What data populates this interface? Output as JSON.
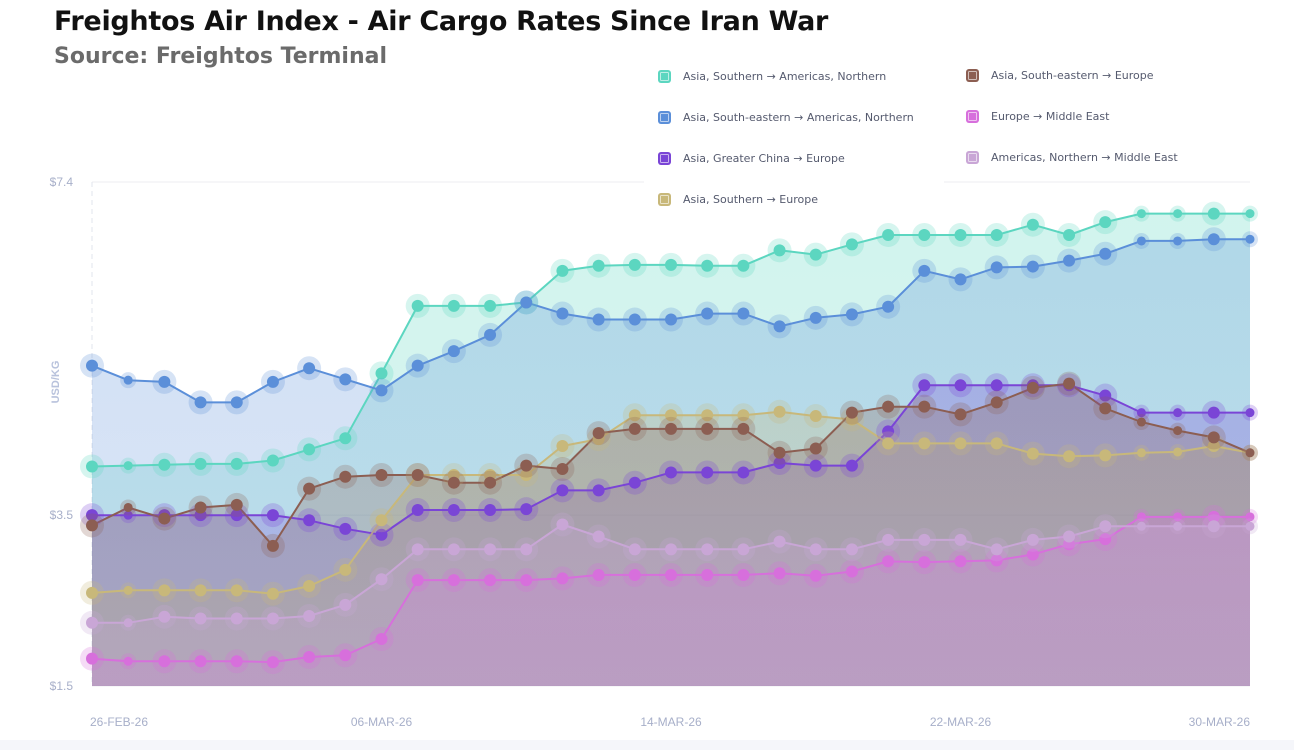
{
  "header": {
    "title": "Freightos Air Index - Air Cargo Rates Since Iran War",
    "subtitle": "Source: Freightos Terminal"
  },
  "chart_data": {
    "type": "area",
    "title": "Freightos Air Index - Air Cargo Rates Since Iran War",
    "subtitle": "Source: Freightos Terminal",
    "xlabel": "",
    "ylabel": "USD/KG",
    "ylim": [
      1.5,
      7.4
    ],
    "y_ticks": [
      1.5,
      3.5,
      7.4
    ],
    "y_tick_labels": [
      "$1.5",
      "$3.5",
      "$7.4"
    ],
    "x": [
      "26-FEB-26",
      "27-FEB-26",
      "28-FEB-26",
      "01-MAR-26",
      "02-MAR-26",
      "03-MAR-26",
      "04-MAR-26",
      "05-MAR-26",
      "06-MAR-26",
      "07-MAR-26",
      "08-MAR-26",
      "09-MAR-26",
      "10-MAR-26",
      "11-MAR-26",
      "12-MAR-26",
      "13-MAR-26",
      "14-MAR-26",
      "15-MAR-26",
      "16-MAR-26",
      "17-MAR-26",
      "18-MAR-26",
      "19-MAR-26",
      "20-MAR-26",
      "21-MAR-26",
      "22-MAR-26",
      "23-MAR-26",
      "24-MAR-26",
      "25-MAR-26",
      "26-MAR-26",
      "27-MAR-26",
      "28-MAR-26",
      "29-MAR-26",
      "30-MAR-26"
    ],
    "x_tick_labels": [
      "26-FEB-26",
      "06-MAR-26",
      "14-MAR-26",
      "22-MAR-26",
      "30-MAR-26"
    ],
    "x_tick_indices": [
      0,
      8,
      16,
      24,
      32
    ],
    "grid": true,
    "legend_position": "top-right",
    "series": [
      {
        "name": "Asia, Southern → Americas, Northern",
        "color": "#5cd6c0",
        "values": [
          4.07,
          4.08,
          4.09,
          4.1,
          4.1,
          4.14,
          4.27,
          4.4,
          5.16,
          5.95,
          5.95,
          5.95,
          5.99,
          6.36,
          6.42,
          6.43,
          6.43,
          6.42,
          6.42,
          6.6,
          6.55,
          6.67,
          6.78,
          6.78,
          6.78,
          6.78,
          6.9,
          6.78,
          6.93,
          7.03,
          7.03,
          7.03,
          7.03
        ]
      },
      {
        "name": "Asia, South-eastern → Americas, Northern",
        "color": "#5b8fd9",
        "values": [
          5.25,
          5.08,
          5.06,
          4.82,
          4.82,
          5.06,
          5.22,
          5.09,
          4.96,
          5.25,
          5.42,
          5.61,
          5.99,
          5.86,
          5.79,
          5.79,
          5.79,
          5.86,
          5.86,
          5.71,
          5.81,
          5.85,
          5.94,
          6.36,
          6.26,
          6.4,
          6.41,
          6.48,
          6.56,
          6.71,
          6.71,
          6.73,
          6.73
        ]
      },
      {
        "name": "Asia, Greater China → Europe",
        "color": "#7a45d6",
        "values": [
          3.5,
          3.5,
          3.5,
          3.5,
          3.5,
          3.5,
          3.44,
          3.34,
          3.27,
          3.56,
          3.56,
          3.56,
          3.57,
          3.79,
          3.79,
          3.88,
          4.0,
          4.0,
          4.0,
          4.11,
          4.08,
          4.08,
          4.48,
          5.02,
          5.02,
          5.02,
          5.02,
          5.02,
          4.9,
          4.7,
          4.7,
          4.7,
          4.7
        ]
      },
      {
        "name": "Asia, Southern → Europe",
        "color": "#c8b87a",
        "values": [
          2.59,
          2.62,
          2.62,
          2.62,
          2.62,
          2.58,
          2.67,
          2.86,
          3.44,
          3.97,
          3.97,
          3.97,
          3.97,
          4.31,
          4.39,
          4.67,
          4.67,
          4.67,
          4.67,
          4.71,
          4.66,
          4.62,
          4.34,
          4.34,
          4.34,
          4.34,
          4.22,
          4.19,
          4.2,
          4.23,
          4.24,
          4.31,
          4.23
        ]
      },
      {
        "name": "Asia, South-eastern → Europe",
        "color": "#8c5e52",
        "values": [
          3.38,
          3.59,
          3.46,
          3.59,
          3.62,
          3.14,
          3.81,
          3.95,
          3.97,
          3.97,
          3.88,
          3.88,
          4.08,
          4.04,
          4.46,
          4.51,
          4.51,
          4.51,
          4.51,
          4.23,
          4.28,
          4.7,
          4.77,
          4.77,
          4.68,
          4.82,
          4.99,
          5.04,
          4.75,
          4.59,
          4.49,
          4.41,
          4.23
        ]
      },
      {
        "name": "Europe → Middle East",
        "color": "#d76fdc",
        "values": [
          1.82,
          1.79,
          1.79,
          1.79,
          1.79,
          1.78,
          1.84,
          1.86,
          2.05,
          2.74,
          2.74,
          2.74,
          2.74,
          2.76,
          2.8,
          2.8,
          2.8,
          2.8,
          2.8,
          2.82,
          2.79,
          2.84,
          2.96,
          2.95,
          2.96,
          2.97,
          3.04,
          3.16,
          3.22,
          3.48,
          3.48,
          3.48,
          3.48
        ]
      },
      {
        "name": "Americas, Northern → Middle East",
        "color": "#c9a6d6",
        "values": [
          2.24,
          2.24,
          2.31,
          2.29,
          2.29,
          2.29,
          2.32,
          2.45,
          2.75,
          3.1,
          3.1,
          3.1,
          3.1,
          3.39,
          3.25,
          3.1,
          3.1,
          3.1,
          3.1,
          3.19,
          3.1,
          3.1,
          3.21,
          3.21,
          3.21,
          3.1,
          3.21,
          3.25,
          3.37,
          3.37,
          3.37,
          3.37,
          3.37
        ]
      }
    ]
  },
  "legend": {
    "items": [
      {
        "label": "Asia, Southern → Americas, Northern",
        "color": "#5cd6c0"
      },
      {
        "label": "Asia, South-eastern → Americas, Northern",
        "color": "#5b8fd9"
      },
      {
        "label": "Asia, Greater China → Europe",
        "color": "#7a45d6"
      },
      {
        "label": "Asia, Southern → Europe",
        "color": "#c8b87a"
      },
      {
        "label": "Asia, South-eastern → Europe",
        "color": "#8c5e52"
      },
      {
        "label": "Europe → Middle East",
        "color": "#d76fdc"
      },
      {
        "label": "Americas, Northern → Middle East",
        "color": "#c9a6d6"
      }
    ]
  }
}
